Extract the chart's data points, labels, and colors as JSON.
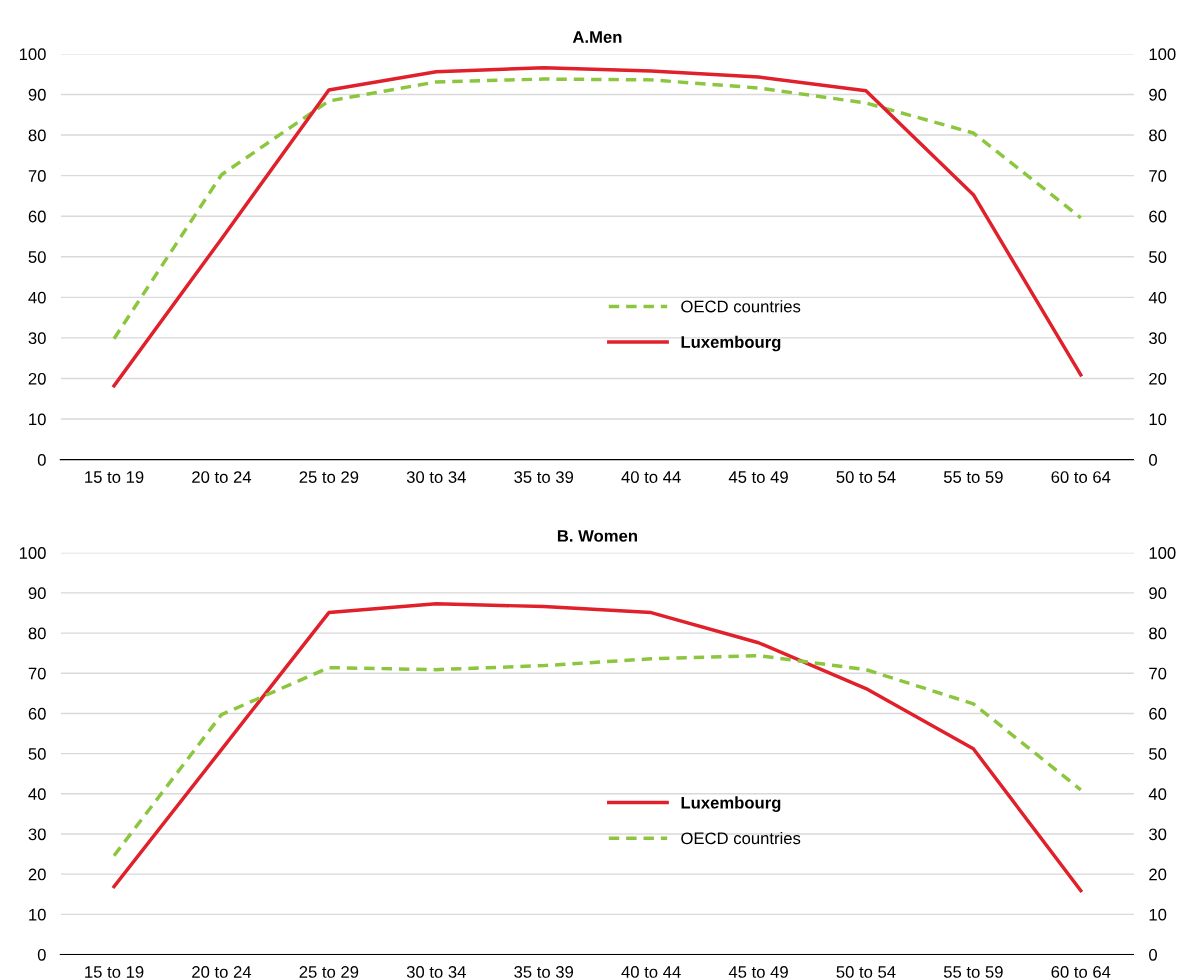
{
  "chart_data": [
    {
      "type": "line",
      "title": "A.Men",
      "categories": [
        "15 to 19",
        "20 to 24",
        "25 to 29",
        "30 to 34",
        "35 to 39",
        "40 to 44",
        "45 to 49",
        "50 to 54",
        "55 to 59",
        "60 to 64"
      ],
      "series": [
        {
          "name": "OECD countries",
          "color": "#8cc63f",
          "line_style": "dashed",
          "values": [
            29.8,
            70.2,
            88.4,
            93.1,
            93.8,
            93.6,
            91.6,
            87.9,
            80.5,
            59.6
          ]
        },
        {
          "name": "Luxembourg",
          "color": "#e0202a",
          "line_style": "solid",
          "values": [
            18.2,
            54.4,
            91.1,
            95.6,
            96.6,
            95.8,
            94.3,
            90.9,
            65.3,
            20.9
          ]
        }
      ],
      "ylim": [
        0,
        100
      ],
      "yticks": [
        0,
        10,
        20,
        30,
        40,
        50,
        60,
        70,
        80,
        90,
        100
      ],
      "y2lim": [
        0,
        100
      ],
      "y2ticks": [
        0,
        10,
        20,
        30,
        40,
        50,
        60,
        70,
        80,
        90,
        100
      ],
      "grid": "y",
      "legend": "center",
      "marker": "none"
    },
    {
      "type": "line",
      "title": "B. Women",
      "categories": [
        "15 to 19",
        "20 to 24",
        "25 to 29",
        "30 to 34",
        "35 to 39",
        "40 to 44",
        "45 to 49",
        "50 to 54",
        "55 to 59",
        "60 to 64"
      ],
      "series": [
        {
          "name": "Luxembourg",
          "color": "#e0202a",
          "line_style": "solid",
          "values": [
            16.9,
            51.0,
            85.1,
            87.3,
            86.6,
            85.1,
            77.6,
            66.2,
            51.2,
            15.9
          ]
        },
        {
          "name": "OECD countries",
          "color": "#8cc63f",
          "line_style": "dashed",
          "values": [
            24.6,
            59.7,
            71.4,
            70.9,
            71.9,
            73.6,
            74.4,
            70.9,
            62.4,
            41.0
          ]
        }
      ],
      "ylim": [
        0,
        100
      ],
      "yticks": [
        0,
        10,
        20,
        30,
        40,
        50,
        60,
        70,
        80,
        90,
        100
      ],
      "y2lim": [
        0,
        100
      ],
      "y2ticks": [
        0,
        10,
        20,
        30,
        40,
        50,
        60,
        70,
        80,
        90,
        100
      ],
      "grid": "y",
      "legend": "center",
      "marker": "none"
    }
  ]
}
